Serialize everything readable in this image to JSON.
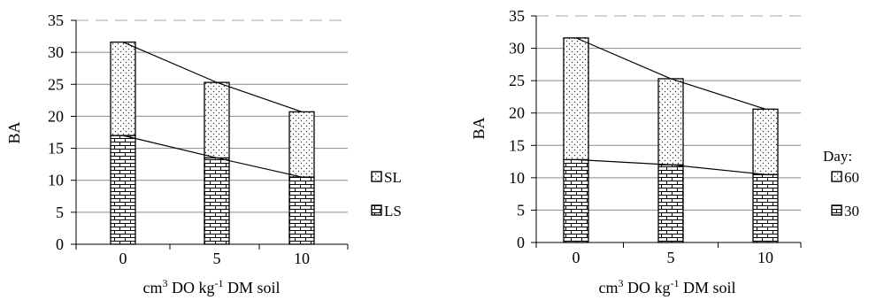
{
  "chart_data": [
    {
      "type": "bar",
      "stacked": true,
      "categories": [
        "0",
        "5",
        "10"
      ],
      "ylabel": "BA",
      "xlabel_parts": [
        "cm",
        "3",
        " DO kg",
        "-1",
        " DM soil"
      ],
      "ylim": [
        0,
        35
      ],
      "yticks": [
        0,
        5,
        10,
        15,
        20,
        25,
        30,
        35
      ],
      "grid": true,
      "legend_position": "right",
      "legend_title": "",
      "series": [
        {
          "name": "LS",
          "values": [
            17,
            13.5,
            10.5
          ],
          "pattern": "brick"
        },
        {
          "name": "SL",
          "values": [
            14.6,
            11.8,
            10.2
          ],
          "pattern": "dots"
        }
      ],
      "total_line": [
        31.6,
        25.3,
        20.7
      ],
      "lower_line": [
        17,
        13.5,
        10.5
      ]
    },
    {
      "type": "bar",
      "stacked": true,
      "categories": [
        "0",
        "5",
        "10"
      ],
      "ylabel": "BA",
      "xlabel_parts": [
        "cm",
        "3",
        " DO kg",
        "-1",
        " DM soil"
      ],
      "ylim": [
        0,
        35
      ],
      "yticks": [
        0,
        5,
        10,
        15,
        20,
        25,
        30,
        35
      ],
      "grid": true,
      "legend_position": "right",
      "legend_title": "Day:",
      "series": [
        {
          "name": "30",
          "values": [
            12.8,
            12,
            10.5
          ],
          "pattern": "brick"
        },
        {
          "name": "60",
          "values": [
            18.8,
            13.3,
            10.1
          ],
          "pattern": "dots"
        }
      ],
      "total_line": [
        31.6,
        25.3,
        20.6
      ],
      "lower_line": [
        12.8,
        12,
        10.5
      ]
    }
  ]
}
